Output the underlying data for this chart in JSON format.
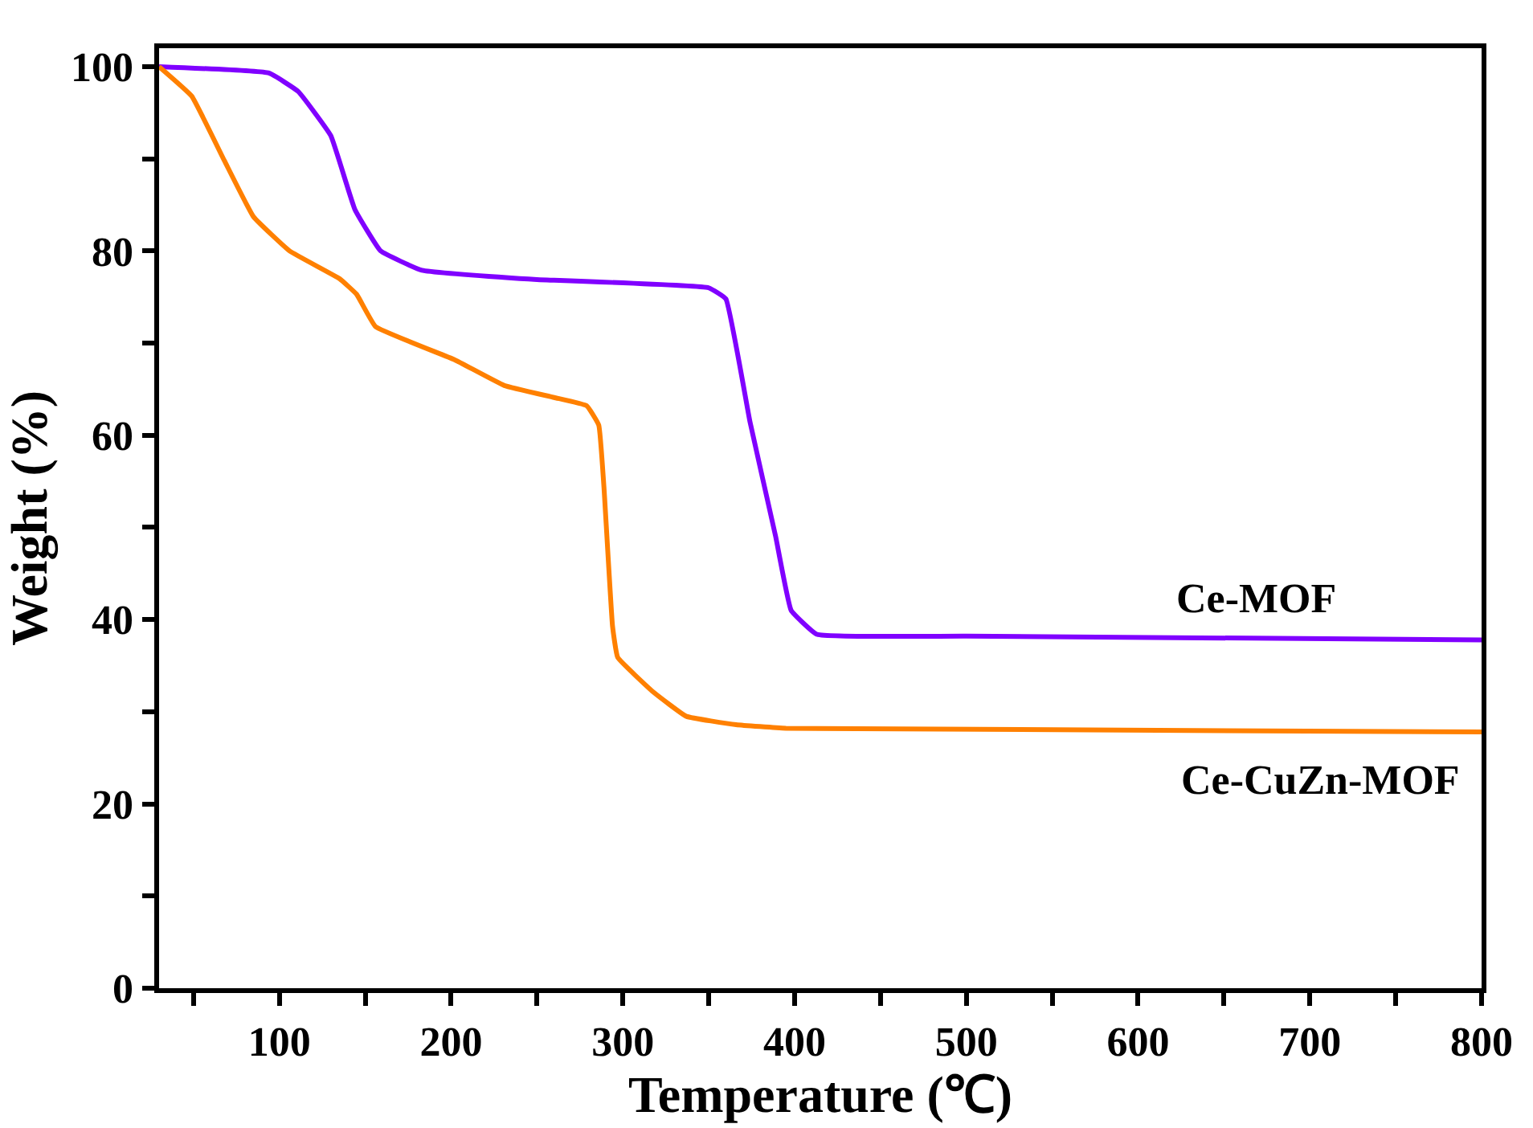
{
  "chart_data": {
    "type": "line",
    "xlabel": "Temperature (℃)",
    "ylabel": "Weight (%)",
    "xlim": [
      30,
      800
    ],
    "ylim": [
      0,
      102
    ],
    "xticks": [
      {
        "value": 50,
        "label": null
      },
      100,
      {
        "value": 150,
        "label": null
      },
      200,
      {
        "value": 250,
        "label": null
      },
      300,
      {
        "value": 350,
        "label": null
      },
      400,
      {
        "value": 450,
        "label": null
      },
      500,
      {
        "value": 550,
        "label": null
      },
      600,
      {
        "value": 650,
        "label": null
      },
      700,
      {
        "value": 750,
        "label": null
      },
      800
    ],
    "yticks": [
      0,
      {
        "value": 10,
        "label": null
      },
      20,
      {
        "value": 30,
        "label": null
      },
      40,
      {
        "value": 50,
        "label": null
      },
      60,
      {
        "value": 70,
        "label": null
      },
      80,
      {
        "value": 90,
        "label": null
      },
      100
    ],
    "legend": false,
    "marker": "none",
    "line_style": "solid",
    "series": [
      {
        "name": "Ce-MOF",
        "color": "#8000ff",
        "x": [
          30,
          94,
          111,
          130,
          144,
          159,
          183,
          240,
          250,
          350,
          360,
          374,
          389,
          398,
          413,
          500,
          800
        ],
        "values": [
          100,
          99.3,
          97.3,
          92.5,
          84.5,
          80,
          77.9,
          77,
          76.9,
          76,
          74.8,
          61.5,
          49,
          41,
          38.4,
          38.2,
          37.8
        ]
      },
      {
        "name": "Ce-CuZn-MOF",
        "color": "#ff8000",
        "x": [
          30,
          49,
          68,
          85,
          106,
          135,
          145,
          156,
          202,
          231,
          260,
          279,
          286,
          289,
          294,
          297,
          318,
          337,
          366,
          395,
          800
        ],
        "values": [
          100,
          96.8,
          89.8,
          83.7,
          80,
          77,
          75.3,
          71.8,
          68.2,
          65.4,
          64.1,
          63.2,
          61.1,
          54.4,
          39.3,
          35.9,
          32.1,
          29.5,
          28.6,
          28.2,
          27.8
        ]
      }
    ]
  }
}
